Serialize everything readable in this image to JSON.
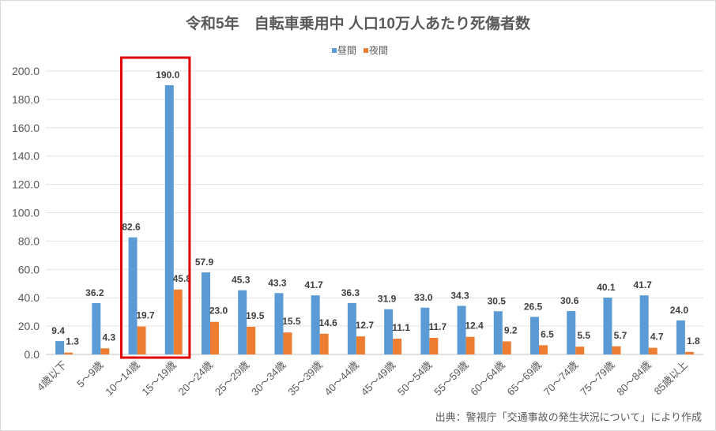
{
  "chart_data": {
    "type": "bar",
    "title": "令和5年　自転車乗用中 人口10万人あたり死傷者数",
    "categories": [
      "4歳以下",
      "5～9歳",
      "10～14歳",
      "15～19歳",
      "20～24歳",
      "25～29歳",
      "30～34歳",
      "35～39歳",
      "40～44歳",
      "45～49歳",
      "50～54歳",
      "55～59歳",
      "60～64歳",
      "65～69歳",
      "70～74歳",
      "75～79歳",
      "80～84歳",
      "85歳以上"
    ],
    "series": [
      {
        "name": "昼間",
        "color": "#5b9bd5",
        "values": [
          9.4,
          36.2,
          82.6,
          190.0,
          57.9,
          45.3,
          43.3,
          41.7,
          36.3,
          31.9,
          33.0,
          34.3,
          30.5,
          26.5,
          30.6,
          40.1,
          41.7,
          24.0
        ]
      },
      {
        "name": "夜間",
        "color": "#ed7d31",
        "values": [
          1.3,
          4.3,
          19.7,
          45.8,
          23.0,
          19.5,
          15.5,
          14.6,
          12.7,
          11.1,
          11.7,
          12.4,
          9.2,
          6.5,
          5.5,
          5.7,
          4.7,
          1.8
        ]
      }
    ],
    "ylim": [
      0,
      200
    ],
    "yticks": [
      "0.0",
      "20.0",
      "40.0",
      "60.0",
      "80.0",
      "100.0",
      "120.0",
      "140.0",
      "160.0",
      "180.0",
      "200.0"
    ],
    "grid": true,
    "legend": "top-center",
    "highlight_categories": [
      "10～14歳",
      "15～19歳"
    ],
    "highlight_color": "#e00000",
    "source_note": "出典：警視庁「交通事故の発生状況について」により作成"
  }
}
